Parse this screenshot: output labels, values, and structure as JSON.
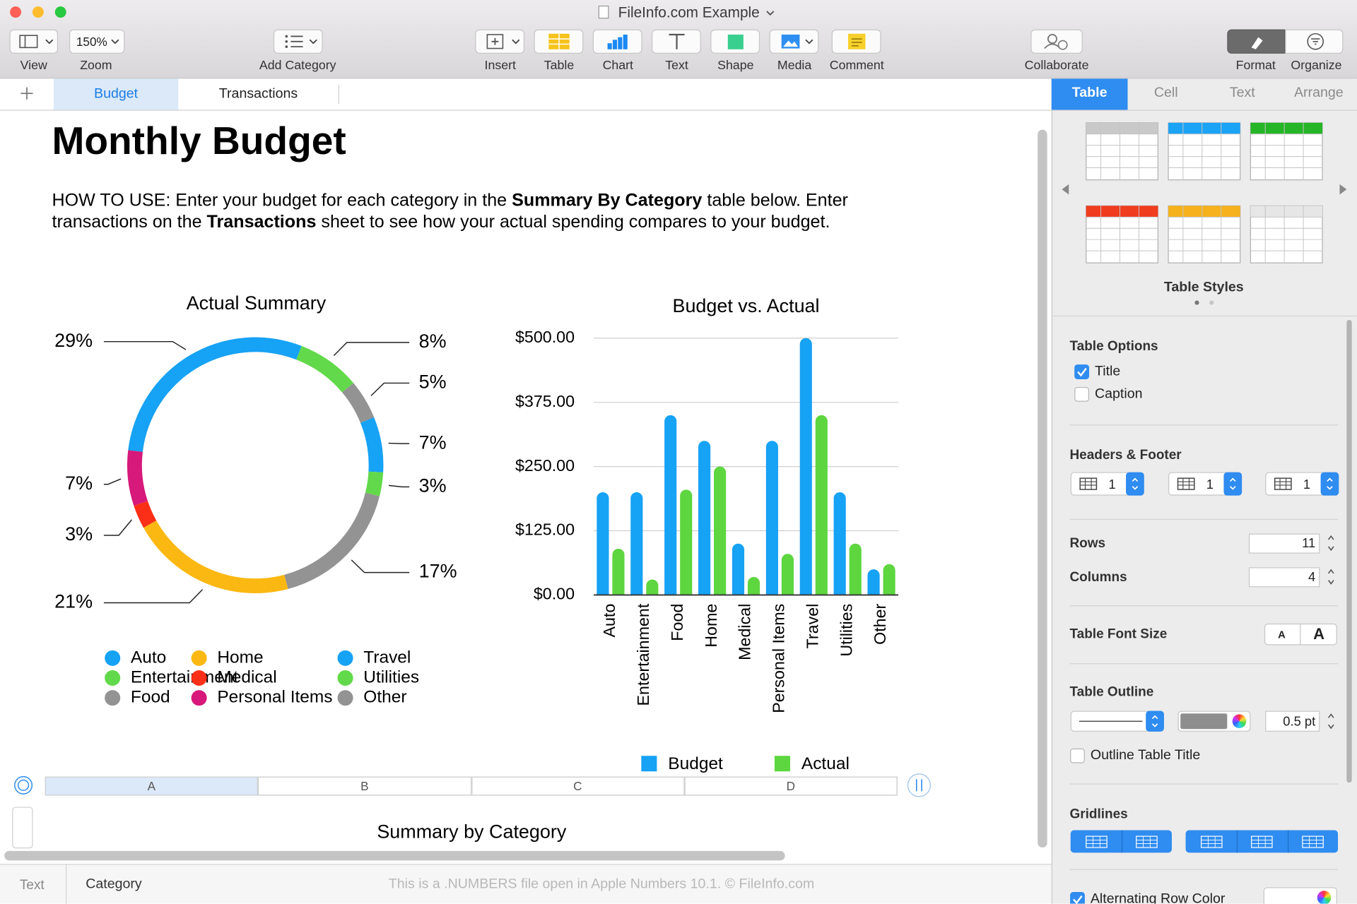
{
  "window": {
    "title": "FileInfo.com Example"
  },
  "toolbar": {
    "zoom_value": "150%",
    "items": [
      "View",
      "Zoom",
      "Add Category",
      "Insert",
      "Table",
      "Chart",
      "Text",
      "Shape",
      "Media",
      "Comment",
      "Collaborate",
      "Format",
      "Organize"
    ]
  },
  "sheet_tabs": {
    "active": 0,
    "tabs": [
      "Budget",
      "Transactions"
    ]
  },
  "document": {
    "title": "Monthly Budget",
    "instructions": [
      {
        "text": "HOW TO USE: Enter your budget for each category in the ",
        "bold": false
      },
      {
        "text": "Summary By Category",
        "bold": true
      },
      {
        "text": " table below. Enter transactions on the ",
        "bold": false
      },
      {
        "text": "Transactions",
        "bold": true
      },
      {
        "text": " sheet to see how your actual spending compares to your budget.",
        "bold": false
      }
    ]
  },
  "chart_data": [
    {
      "type": "pie",
      "title": "Actual Summary",
      "donut": true,
      "categories": [
        "Auto",
        "Entertainment",
        "Food",
        "Home",
        "Medical",
        "Personal Items",
        "Travel",
        "Utilities",
        "Other"
      ],
      "colors": [
        "#16a2f5",
        "#62d94a",
        "#939393",
        "#fbb812",
        "#fb2f17",
        "#d6197a",
        "#16a2f5",
        "#62d94a",
        "#939393"
      ],
      "values": [
        7,
        3,
        17,
        21,
        3,
        7,
        29,
        8,
        5
      ],
      "value_labels": [
        "7%",
        "3%",
        "17%",
        "21%",
        "3%",
        "7%",
        "29%",
        "8%",
        "5%"
      ]
    },
    {
      "type": "bar",
      "title": "Budget vs. Actual",
      "categories": [
        "Auto",
        "Entertainment",
        "Food",
        "Home",
        "Medical",
        "Personal Items",
        "Travel",
        "Utilities",
        "Other"
      ],
      "series": [
        {
          "name": "Budget",
          "color": "#16a2f5",
          "values": [
            200,
            200,
            350,
            300,
            100,
            300,
            500,
            200,
            50
          ]
        },
        {
          "name": "Actual",
          "color": "#5dd63f",
          "values": [
            90,
            30,
            205,
            250,
            35,
            80,
            350,
            100,
            60
          ]
        }
      ],
      "ylim": [
        0,
        500
      ],
      "yticks": [
        {
          "value": 0,
          "label": "$0.00"
        },
        {
          "value": 125,
          "label": "$125.00"
        },
        {
          "value": 250,
          "label": "$250.00"
        },
        {
          "value": 375,
          "label": "$375.00"
        },
        {
          "value": 500,
          "label": "$500.00"
        }
      ],
      "grid": true
    }
  ],
  "table": {
    "columns": [
      "A",
      "B",
      "C",
      "D"
    ],
    "selected_column": 0,
    "title": "Summary by Category"
  },
  "sidebar": {
    "tabs": [
      "Table",
      "Cell",
      "Text",
      "Arrange"
    ],
    "active_tab": 0,
    "table_styles_label": "Table Styles",
    "table_options": {
      "heading": "Table Options",
      "title": {
        "label": "Title",
        "checked": true
      },
      "caption": {
        "label": "Caption",
        "checked": false
      }
    },
    "headers_footer": {
      "heading": "Headers & Footer",
      "header_rows": 1,
      "header_columns": 1,
      "footer_rows": 1
    },
    "rows": {
      "label": "Rows",
      "value": 11
    },
    "columns": {
      "label": "Columns",
      "value": 4
    },
    "font_size": {
      "label": "Table Font Size",
      "smaller": "A",
      "larger": "A"
    },
    "outline": {
      "heading": "Table Outline",
      "width": "0.5 pt",
      "outline_title": {
        "label": "Outline Table Title",
        "checked": false
      }
    },
    "gridlines": {
      "heading": "Gridlines"
    },
    "alternating": {
      "label": "Alternating Row Color",
      "checked": true
    }
  },
  "status_bar": {
    "cells": [
      "Text",
      "Category"
    ],
    "note": "This is a .NUMBERS file open in Apple Numbers 10.1. © FileInfo.com"
  }
}
